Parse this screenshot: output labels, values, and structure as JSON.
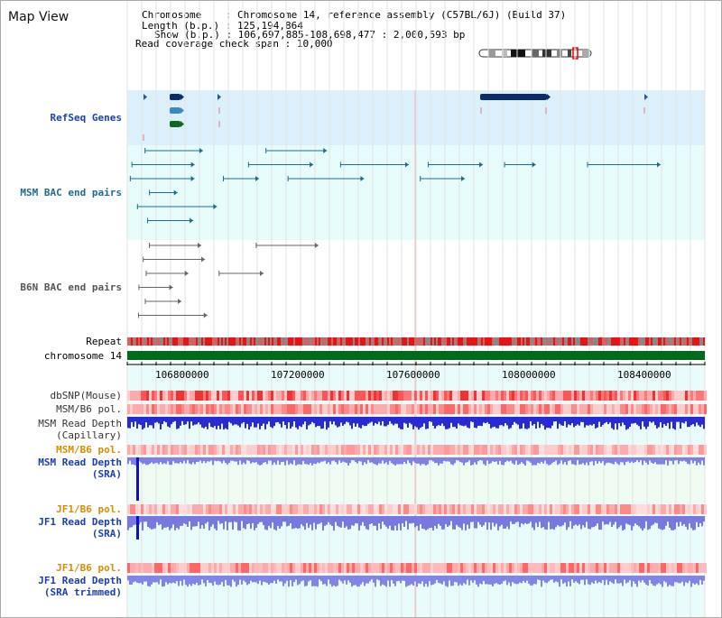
{
  "title": "Map View",
  "info": {
    "chromosome_key": "Chromosome",
    "chromosome_val": ": Chromosome 14, reference assembly (C57BL/6J) (Build 37)",
    "length_key": "Length (b.p.)",
    "length_val": ": 125,194,864",
    "show_key": "Show (b.p.)",
    "show_val": ": 106,697,885-108,698,477 : 2,000,593 bp",
    "coverage_key": "Read coverage check span",
    "coverage_val": ": 10,000"
  },
  "labels": {
    "refseq": "RefSeq Genes",
    "msm_bac": "MSM BAC end pairs",
    "b6n_bac": "B6N BAC end pairs",
    "repeat": "Repeat",
    "chromosome": "chromosome 14",
    "dbsnp": "dbSNP(Mouse)",
    "msm_b6_pol": "MSM/B6 pol.",
    "msm_read_cap_1": "MSM Read Depth",
    "msm_read_cap_2": "(Capillary)",
    "msm_b6_pol_sra": "MSM/B6 pol.",
    "msm_read_sra_1": "MSM Read Depth",
    "msm_read_sra_2": "(SRA)",
    "jf1_b6_pol": "JF1/B6 pol.",
    "jf1_read_sra_1": "JF1 Read Depth",
    "jf1_read_sra_2": "(SRA)",
    "jf1_b6_pol_2": "JF1/B6 pol.",
    "jf1_read_trim_1": "JF1 Read Depth",
    "jf1_read_trim_2": "(SRA trimmed)"
  },
  "axis": {
    "ticks": [
      "106800000",
      "107200000",
      "107600000",
      "108000000",
      "108400000"
    ]
  },
  "colors": {
    "refseq_bg": "#dceffa",
    "bac_bg": "#e8fcfc",
    "track_bg": "#e9fbfb",
    "msm_label": "#1a3fb0",
    "bac_label": "#1a6e8c",
    "b6n_label": "#555555",
    "orange_label": "#d98c00"
  }
}
